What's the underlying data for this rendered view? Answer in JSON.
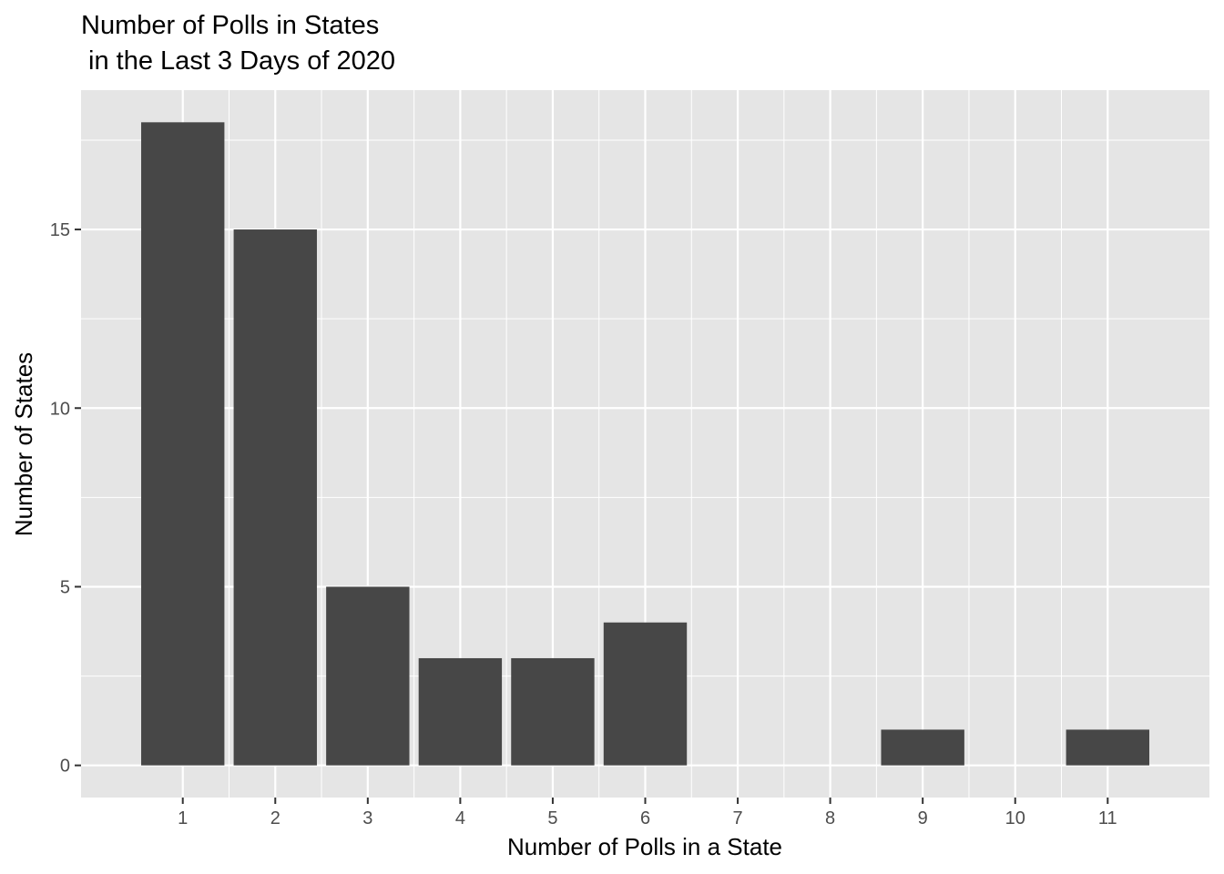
{
  "chart_data": {
    "type": "bar",
    "title_lines": [
      "Number of Polls in States",
      " in the Last 3 Days of 2020"
    ],
    "xlabel": "Number of Polls in a State",
    "ylabel": "Number of States",
    "categories": [
      "1",
      "2",
      "3",
      "4",
      "5",
      "6",
      "7",
      "8",
      "9",
      "10",
      "11"
    ],
    "values": [
      18,
      15,
      5,
      3,
      3,
      4,
      0,
      0,
      1,
      0,
      1
    ],
    "y_ticks": [
      "0",
      "5",
      "10",
      "15"
    ],
    "ylim": [
      -0.9,
      18.9
    ],
    "xlim": [
      0.5,
      11.5
    ],
    "grid": true,
    "legend": "none",
    "colors": {
      "bar": "#474747",
      "panel": "#e5e5e5",
      "grid": "#ffffff",
      "tick_text": "#4d4d4d",
      "tick_mark": "#333333"
    }
  }
}
